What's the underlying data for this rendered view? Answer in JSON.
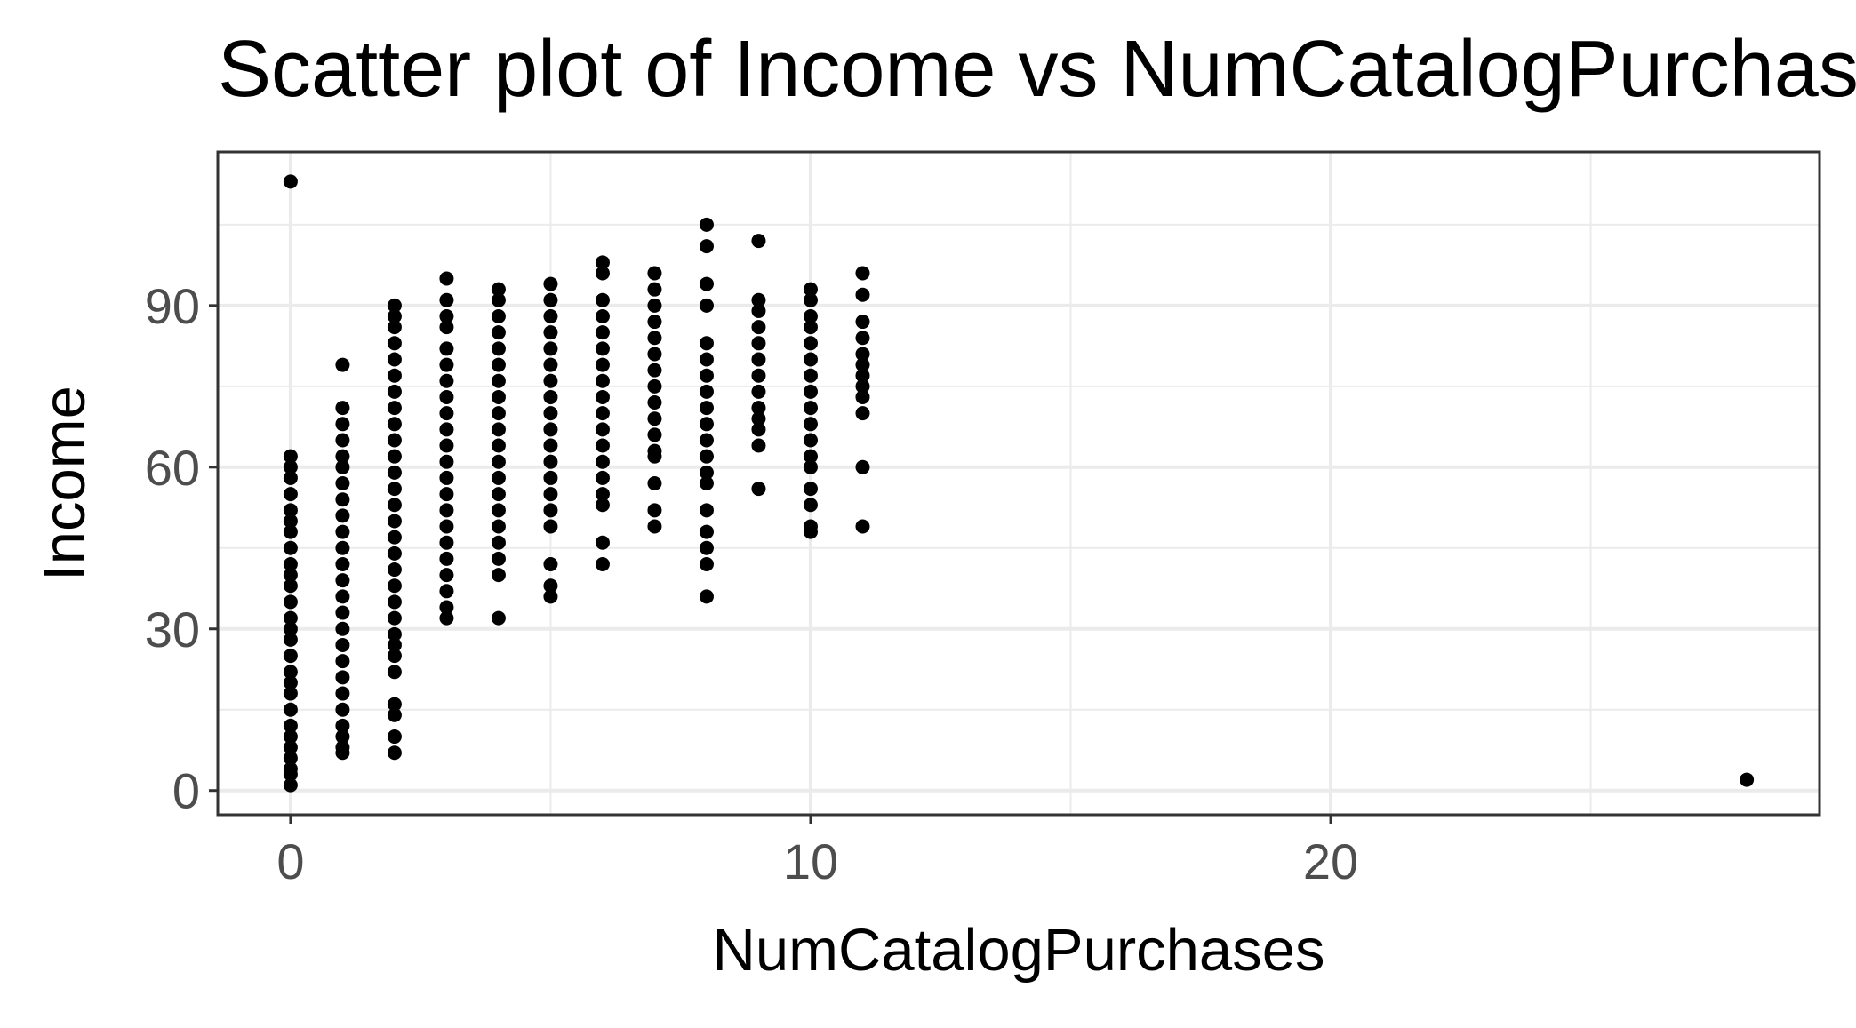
{
  "chart_data": {
    "type": "scatter",
    "title": "Scatter plot of Income vs NumCatalogPurchases",
    "xlabel": "NumCatalogPurchases",
    "ylabel": "Income",
    "xlim": [
      -1.4,
      29.4
    ],
    "ylim": [
      -4.5,
      118.5
    ],
    "x_ticks": [
      0,
      10,
      20
    ],
    "x_tick_labels": [
      "0",
      "10",
      "20"
    ],
    "x_minor_ticks": [
      5,
      15,
      25
    ],
    "y_ticks": [
      0,
      30,
      60,
      90
    ],
    "y_tick_labels": [
      "0",
      "30",
      "60",
      "90"
    ],
    "y_minor_ticks": [
      15,
      45,
      75,
      105
    ],
    "grid": true,
    "legend": "none",
    "point_color": "#000000",
    "series": [
      {
        "points": [
          [
            0,
            113
          ],
          [
            0,
            62
          ],
          [
            0,
            60
          ],
          [
            0,
            58
          ],
          [
            0,
            55
          ],
          [
            0,
            52
          ],
          [
            0,
            50
          ],
          [
            0,
            48
          ],
          [
            0,
            45
          ],
          [
            0,
            42
          ],
          [
            0,
            40
          ],
          [
            0,
            38
          ],
          [
            0,
            35
          ],
          [
            0,
            32
          ],
          [
            0,
            30
          ],
          [
            0,
            28
          ],
          [
            0,
            25
          ],
          [
            0,
            22
          ],
          [
            0,
            20
          ],
          [
            0,
            18
          ],
          [
            0,
            15
          ],
          [
            0,
            12
          ],
          [
            0,
            10
          ],
          [
            0,
            8
          ],
          [
            0,
            6
          ],
          [
            0,
            4
          ],
          [
            0,
            3
          ],
          [
            0,
            1
          ],
          [
            1,
            79
          ],
          [
            1,
            71
          ],
          [
            1,
            68
          ],
          [
            1,
            65
          ],
          [
            1,
            62
          ],
          [
            1,
            60
          ],
          [
            1,
            57
          ],
          [
            1,
            54
          ],
          [
            1,
            51
          ],
          [
            1,
            48
          ],
          [
            1,
            45
          ],
          [
            1,
            42
          ],
          [
            1,
            39
          ],
          [
            1,
            36
          ],
          [
            1,
            33
          ],
          [
            1,
            30
          ],
          [
            1,
            27
          ],
          [
            1,
            24
          ],
          [
            1,
            21
          ],
          [
            1,
            18
          ],
          [
            1,
            15
          ],
          [
            1,
            12
          ],
          [
            1,
            10
          ],
          [
            1,
            8
          ],
          [
            1,
            7
          ],
          [
            2,
            90
          ],
          [
            2,
            88
          ],
          [
            2,
            86
          ],
          [
            2,
            83
          ],
          [
            2,
            80
          ],
          [
            2,
            77
          ],
          [
            2,
            74
          ],
          [
            2,
            71
          ],
          [
            2,
            68
          ],
          [
            2,
            65
          ],
          [
            2,
            62
          ],
          [
            2,
            59
          ],
          [
            2,
            56
          ],
          [
            2,
            53
          ],
          [
            2,
            50
          ],
          [
            2,
            47
          ],
          [
            2,
            44
          ],
          [
            2,
            41
          ],
          [
            2,
            38
          ],
          [
            2,
            35
          ],
          [
            2,
            32
          ],
          [
            2,
            29
          ],
          [
            2,
            27
          ],
          [
            2,
            25
          ],
          [
            2,
            22
          ],
          [
            2,
            16
          ],
          [
            2,
            14
          ],
          [
            2,
            10
          ],
          [
            2,
            7
          ],
          [
            3,
            95
          ],
          [
            3,
            91
          ],
          [
            3,
            88
          ],
          [
            3,
            86
          ],
          [
            3,
            82
          ],
          [
            3,
            79
          ],
          [
            3,
            76
          ],
          [
            3,
            73
          ],
          [
            3,
            70
          ],
          [
            3,
            67
          ],
          [
            3,
            64
          ],
          [
            3,
            61
          ],
          [
            3,
            58
          ],
          [
            3,
            55
          ],
          [
            3,
            52
          ],
          [
            3,
            49
          ],
          [
            3,
            46
          ],
          [
            3,
            43
          ],
          [
            3,
            40
          ],
          [
            3,
            37
          ],
          [
            3,
            34
          ],
          [
            3,
            32
          ],
          [
            4,
            93
          ],
          [
            4,
            91
          ],
          [
            4,
            88
          ],
          [
            4,
            85
          ],
          [
            4,
            82
          ],
          [
            4,
            79
          ],
          [
            4,
            76
          ],
          [
            4,
            73
          ],
          [
            4,
            70
          ],
          [
            4,
            67
          ],
          [
            4,
            64
          ],
          [
            4,
            61
          ],
          [
            4,
            58
          ],
          [
            4,
            55
          ],
          [
            4,
            52
          ],
          [
            4,
            49
          ],
          [
            4,
            46
          ],
          [
            4,
            43
          ],
          [
            4,
            40
          ],
          [
            4,
            32
          ],
          [
            5,
            94
          ],
          [
            5,
            91
          ],
          [
            5,
            88
          ],
          [
            5,
            85
          ],
          [
            5,
            82
          ],
          [
            5,
            79
          ],
          [
            5,
            76
          ],
          [
            5,
            73
          ],
          [
            5,
            70
          ],
          [
            5,
            67
          ],
          [
            5,
            64
          ],
          [
            5,
            61
          ],
          [
            5,
            58
          ],
          [
            5,
            55
          ],
          [
            5,
            52
          ],
          [
            5,
            49
          ],
          [
            5,
            42
          ],
          [
            5,
            38
          ],
          [
            5,
            36
          ],
          [
            6,
            98
          ],
          [
            6,
            96
          ],
          [
            6,
            91
          ],
          [
            6,
            88
          ],
          [
            6,
            85
          ],
          [
            6,
            82
          ],
          [
            6,
            79
          ],
          [
            6,
            76
          ],
          [
            6,
            73
          ],
          [
            6,
            70
          ],
          [
            6,
            67
          ],
          [
            6,
            64
          ],
          [
            6,
            61
          ],
          [
            6,
            58
          ],
          [
            6,
            55
          ],
          [
            6,
            53
          ],
          [
            6,
            46
          ],
          [
            6,
            42
          ],
          [
            7,
            96
          ],
          [
            7,
            93
          ],
          [
            7,
            90
          ],
          [
            7,
            87
          ],
          [
            7,
            84
          ],
          [
            7,
            81
          ],
          [
            7,
            78
          ],
          [
            7,
            75
          ],
          [
            7,
            72
          ],
          [
            7,
            69
          ],
          [
            7,
            66
          ],
          [
            7,
            63
          ],
          [
            7,
            62
          ],
          [
            7,
            57
          ],
          [
            7,
            52
          ],
          [
            7,
            49
          ],
          [
            8,
            105
          ],
          [
            8,
            101
          ],
          [
            8,
            94
          ],
          [
            8,
            90
          ],
          [
            8,
            83
          ],
          [
            8,
            80
          ],
          [
            8,
            77
          ],
          [
            8,
            74
          ],
          [
            8,
            71
          ],
          [
            8,
            68
          ],
          [
            8,
            65
          ],
          [
            8,
            62
          ],
          [
            8,
            59
          ],
          [
            8,
            57
          ],
          [
            8,
            52
          ],
          [
            8,
            48
          ],
          [
            8,
            45
          ],
          [
            8,
            42
          ],
          [
            8,
            36
          ],
          [
            9,
            102
          ],
          [
            9,
            91
          ],
          [
            9,
            89
          ],
          [
            9,
            86
          ],
          [
            9,
            83
          ],
          [
            9,
            80
          ],
          [
            9,
            77
          ],
          [
            9,
            74
          ],
          [
            9,
            71
          ],
          [
            9,
            69
          ],
          [
            9,
            67
          ],
          [
            9,
            64
          ],
          [
            9,
            56
          ],
          [
            10,
            93
          ],
          [
            10,
            91
          ],
          [
            10,
            88
          ],
          [
            10,
            86
          ],
          [
            10,
            83
          ],
          [
            10,
            80
          ],
          [
            10,
            77
          ],
          [
            10,
            74
          ],
          [
            10,
            71
          ],
          [
            10,
            68
          ],
          [
            10,
            65
          ],
          [
            10,
            62
          ],
          [
            10,
            60
          ],
          [
            10,
            56
          ],
          [
            10,
            53
          ],
          [
            10,
            49
          ],
          [
            10,
            48
          ],
          [
            11,
            96
          ],
          [
            11,
            92
          ],
          [
            11,
            87
          ],
          [
            11,
            84
          ],
          [
            11,
            81
          ],
          [
            11,
            79
          ],
          [
            11,
            77
          ],
          [
            11,
            75
          ],
          [
            11,
            73
          ],
          [
            11,
            70
          ],
          [
            11,
            60
          ],
          [
            11,
            49
          ],
          [
            28,
            2
          ]
        ]
      }
    ]
  }
}
